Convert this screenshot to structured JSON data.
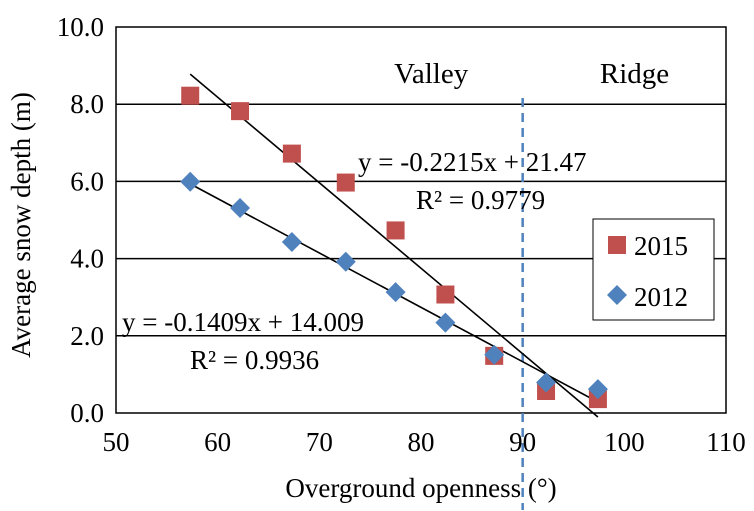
{
  "chart_data": {
    "type": "scatter",
    "xlabel": "Overground openness (°)",
    "ylabel": "Average snow depth (m)",
    "xlim": [
      50,
      110
    ],
    "ylim": [
      0,
      10
    ],
    "x_ticks": [
      "50",
      "60",
      "70",
      "80",
      "90",
      "100",
      "110"
    ],
    "y_ticks": [
      "0.0",
      "2.0",
      "4.0",
      "6.0",
      "8.0",
      "10.0"
    ],
    "grid": "horizontal",
    "legend_position": "right",
    "divider_x": 90,
    "regions": [
      "Valley",
      "Ridge"
    ],
    "series": [
      {
        "name": "2015",
        "marker": "square",
        "color": "#C0504D",
        "x": [
          57.3,
          62.2,
          67.3,
          72.6,
          77.5,
          82.4,
          87.2,
          92.3,
          97.4
        ],
        "y": [
          8.22,
          7.82,
          6.72,
          5.97,
          4.73,
          3.07,
          1.48,
          0.57,
          0.36
        ],
        "trendline": {
          "slope": -0.2215,
          "intercept": 21.47,
          "x_range": [
            57.3,
            97.4
          ]
        },
        "equation": "y = -0.2215x + 21.47",
        "r2": "R² = 0.9779"
      },
      {
        "name": "2012",
        "marker": "diamond",
        "color": "#4F81BD",
        "x": [
          57.3,
          62.2,
          67.3,
          72.6,
          77.5,
          82.4,
          87.2,
          92.3,
          97.4
        ],
        "y": [
          5.99,
          5.31,
          4.43,
          3.92,
          3.13,
          2.34,
          1.51,
          0.79,
          0.62
        ],
        "trendline": {
          "slope": -0.1409,
          "intercept": 14.009,
          "x_range": [
            57.3,
            97.4
          ]
        },
        "equation": "y = -0.1409x + 14.009",
        "r2": "R² = 0.9936"
      }
    ]
  }
}
